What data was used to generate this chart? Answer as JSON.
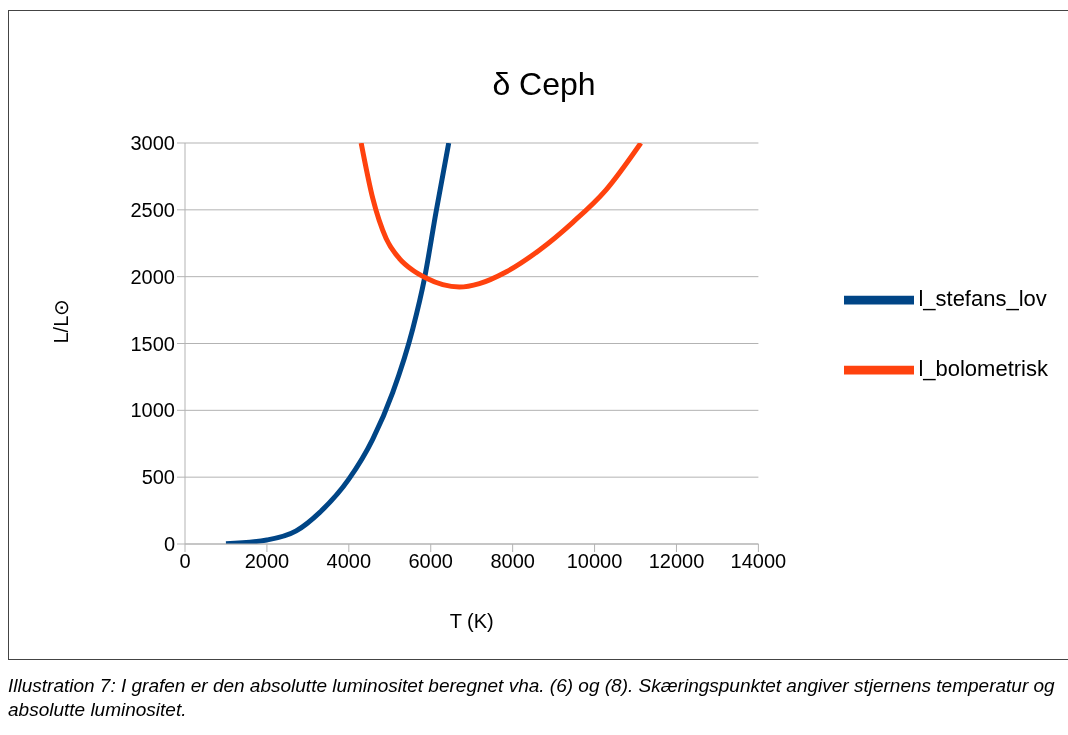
{
  "chart_data": {
    "type": "line",
    "title": "δ Ceph",
    "xlabel": "T (K)",
    "ylabel": "L/L⊙",
    "xlim": [
      0,
      14000
    ],
    "xticks": [
      0,
      2000,
      4000,
      6000,
      8000,
      10000,
      12000,
      14000
    ],
    "ylim": [
      0,
      3000
    ],
    "yticks": [
      0,
      500,
      1000,
      1500,
      2000,
      2500,
      3000
    ],
    "grid": "y",
    "legend": "right",
    "marker": "none",
    "line_style": "solid",
    "series": [
      {
        "name": "l_stefans_lov",
        "color": "#004586",
        "x": [
          1000,
          2000,
          2715,
          3285,
          4000,
          4585,
          5073,
          5561,
          5846,
          6130,
          6439
        ],
        "values": [
          2,
          30,
          98,
          235,
          485,
          785,
          1135,
          1610,
          1985,
          2485,
          3000
        ]
      },
      {
        "name": "l_bolometrisk",
        "color": "#ff420e",
        "x": [
          4301,
          4585,
          4911,
          5236,
          5561,
          5886,
          6293,
          6699,
          7187,
          7837,
          8650,
          9463,
          10276,
          11130
        ],
        "values": [
          3000,
          2585,
          2285,
          2135,
          2048,
          1990,
          1940,
          1922,
          1948,
          2035,
          2198,
          2405,
          2648,
          3000
        ]
      }
    ],
    "annotations": [
      "Illustration 7: I grafen er den absolutte luminositet beregnet vha. (6) og (8). Skæringspunktet angiver stjernens temperatur og absolutte luminositet."
    ]
  }
}
